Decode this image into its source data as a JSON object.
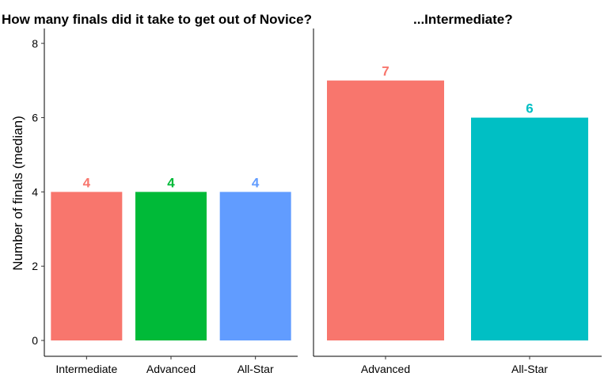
{
  "chart_data": [
    {
      "type": "bar",
      "title": "How many finals did it take to get out of Novice?",
      "ylabel": "Number of finals (median)",
      "xlabel": "",
      "ylim": [
        0,
        8.4
      ],
      "yticks": [
        0,
        2,
        4,
        6,
        8
      ],
      "categories": [
        "Intermediate",
        "Advanced",
        "All-Star"
      ],
      "values": [
        4,
        4,
        4
      ],
      "colors": [
        "#F8766D",
        "#00BA38",
        "#619CFF"
      ],
      "data_labels": [
        "4",
        "4",
        "4"
      ],
      "grid": false
    },
    {
      "type": "bar",
      "title": "...Intermediate?",
      "ylabel": "",
      "xlabel": "",
      "ylim": [
        0,
        8.4
      ],
      "categories": [
        "Advanced",
        "All-Star"
      ],
      "values": [
        7,
        6
      ],
      "colors": [
        "#F8766D",
        "#00BFC4"
      ],
      "data_labels": [
        "7",
        "6"
      ],
      "grid": false
    }
  ]
}
